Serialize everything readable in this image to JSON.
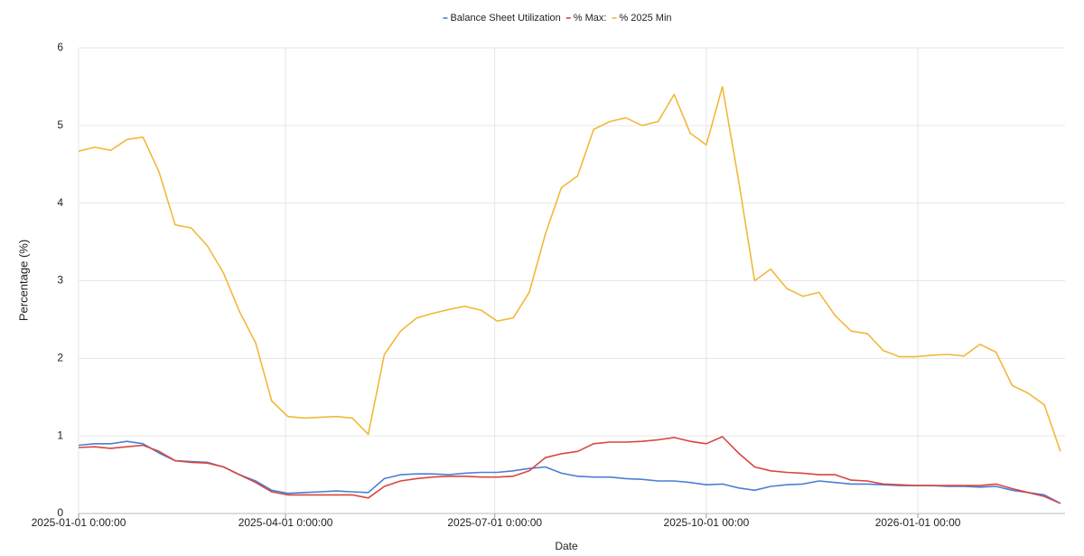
{
  "chart_data": {
    "type": "line",
    "x_label": "Date",
    "y_label": "Percentage (%)",
    "x": [
      "2025-01-01",
      "2025-01-08",
      "2025-01-15",
      "2025-01-22",
      "2025-01-29",
      "2025-02-05",
      "2025-02-12",
      "2025-02-19",
      "2025-02-26",
      "2025-03-05",
      "2025-03-12",
      "2025-03-19",
      "2025-03-26",
      "2025-04-02",
      "2025-04-09",
      "2025-04-16",
      "2025-04-23",
      "2025-04-30",
      "2025-05-07",
      "2025-05-14",
      "2025-05-21",
      "2025-05-28",
      "2025-06-04",
      "2025-06-11",
      "2025-06-18",
      "2025-06-25",
      "2025-07-02",
      "2025-07-09",
      "2025-07-16",
      "2025-07-23",
      "2025-07-30",
      "2025-08-06",
      "2025-08-13",
      "2025-08-20",
      "2025-08-27",
      "2025-09-03",
      "2025-09-10",
      "2025-09-17",
      "2025-09-24",
      "2025-10-01",
      "2025-10-08",
      "2025-10-15",
      "2025-10-22",
      "2025-10-29",
      "2025-11-05",
      "2025-11-12",
      "2025-11-19",
      "2025-11-26",
      "2025-12-03",
      "2025-12-10",
      "2025-12-17",
      "2025-12-24",
      "2025-12-31",
      "2026-01-07",
      "2026-01-14",
      "2026-01-21",
      "2026-01-28",
      "2026-02-04",
      "2026-02-11",
      "2026-02-18",
      "2026-02-25",
      "2026-03-04"
    ],
    "series": [
      {
        "name": "Balance Sheet Utilization",
        "color": "#4a7fd4",
        "values": [
          0.88,
          0.9,
          0.9,
          0.93,
          0.9,
          0.78,
          0.68,
          0.67,
          0.66,
          0.6,
          0.5,
          0.42,
          0.3,
          0.26,
          0.27,
          0.28,
          0.29,
          0.28,
          0.27,
          0.45,
          0.5,
          0.51,
          0.51,
          0.5,
          0.52,
          0.53,
          0.53,
          0.55,
          0.58,
          0.6,
          0.52,
          0.48,
          0.47,
          0.47,
          0.45,
          0.44,
          0.42,
          0.42,
          0.4,
          0.37,
          0.38,
          0.33,
          0.3,
          0.35,
          0.37,
          0.38,
          0.42,
          0.4,
          0.38,
          0.38,
          0.37,
          0.36,
          0.36,
          0.36,
          0.35,
          0.35,
          0.34,
          0.35,
          0.3,
          0.27,
          0.24,
          0.13
        ]
      },
      {
        "name": "% Max:",
        "color": "#d9453f",
        "values": [
          0.85,
          0.86,
          0.84,
          0.86,
          0.88,
          0.8,
          0.68,
          0.66,
          0.65,
          0.6,
          0.5,
          0.4,
          0.28,
          0.24,
          0.24,
          0.24,
          0.24,
          0.24,
          0.2,
          0.35,
          0.42,
          0.45,
          0.47,
          0.48,
          0.48,
          0.47,
          0.47,
          0.48,
          0.55,
          0.72,
          0.77,
          0.8,
          0.9,
          0.92,
          0.92,
          0.93,
          0.95,
          0.98,
          0.93,
          0.9,
          0.99,
          0.78,
          0.6,
          0.55,
          0.53,
          0.52,
          0.5,
          0.5,
          0.43,
          0.42,
          0.38,
          0.37,
          0.36,
          0.36,
          0.36,
          0.36,
          0.36,
          0.38,
          0.32,
          0.27,
          0.22,
          0.13
        ]
      },
      {
        "name": "% 2025 Min",
        "color": "#f2b83a",
        "values": [
          4.67,
          4.72,
          4.68,
          4.82,
          4.85,
          4.4,
          3.72,
          3.68,
          3.45,
          3.1,
          2.6,
          2.2,
          1.45,
          1.25,
          1.23,
          1.24,
          1.25,
          1.23,
          1.02,
          2.05,
          2.35,
          2.52,
          2.58,
          2.63,
          2.67,
          2.62,
          2.48,
          2.52,
          2.85,
          3.6,
          4.2,
          4.35,
          4.95,
          5.05,
          5.1,
          5.0,
          5.05,
          5.4,
          4.9,
          4.75,
          5.5,
          4.3,
          3.0,
          3.15,
          2.9,
          2.8,
          2.85,
          2.55,
          2.35,
          2.32,
          2.1,
          2.02,
          2.02,
          2.04,
          2.05,
          2.03,
          2.18,
          2.08,
          1.65,
          1.55,
          1.4,
          0.8
        ]
      }
    ],
    "xlim": [
      "2025-01-01",
      "2026-03-06"
    ],
    "xticks": [
      {
        "value": "2025-01-01",
        "label": "2025-01-01 0:00:00"
      },
      {
        "value": "2025-04-01",
        "label": "2025-04-01 0:00:00"
      },
      {
        "value": "2025-07-01",
        "label": "2025-07-01 0:00:00"
      },
      {
        "value": "2025-10-01",
        "label": "2025-10-01 00:00"
      },
      {
        "value": "2026-01-01",
        "label": "2026-01-01 00:00"
      }
    ],
    "ylim": [
      0,
      6
    ],
    "yticks": [
      0,
      1,
      2,
      3,
      4,
      5,
      6
    ],
    "grid": true,
    "legend": "top"
  }
}
